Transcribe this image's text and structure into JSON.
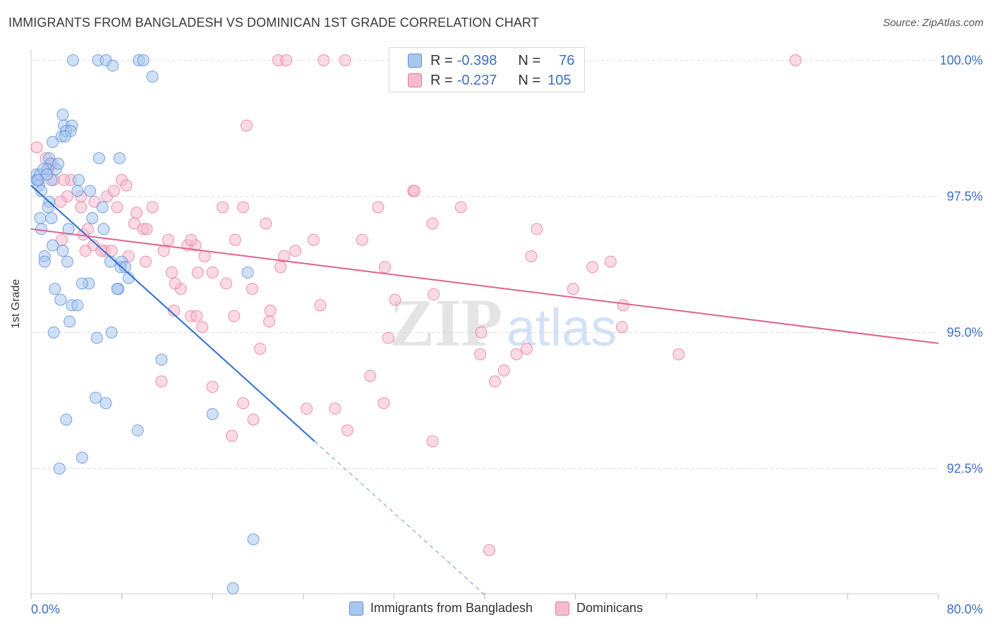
{
  "header": {
    "title": "IMMIGRANTS FROM BANGLADESH VS DOMINICAN 1ST GRADE CORRELATION CHART",
    "source": "Source: ZipAtlas.com"
  },
  "colors": {
    "blue": "#5b8fd9",
    "blue_fill": "#a9c6ee",
    "blue_line": "#2f6fd0",
    "pink": "#e8799b",
    "pink_fill": "#f5bccd",
    "pink_line": "#e0628e",
    "tick": "#3c6fc4",
    "grid": "#dddddd"
  },
  "legend_top": {
    "rows": [
      {
        "r_label": "R =",
        "r_value": "-0.398",
        "n_label": "N =",
        "n_value": "76"
      },
      {
        "r_label": "R =",
        "r_value": "-0.237",
        "n_label": "N =",
        "n_value": "105"
      }
    ]
  },
  "legend_bottom": {
    "items": [
      {
        "label": "Immigrants from Bangladesh"
      },
      {
        "label": "Dominicans"
      }
    ]
  },
  "watermark": {
    "zip": "ZIP",
    "atlas": "atlas"
  },
  "chart_data": {
    "type": "scatter",
    "title": "IMMIGRANTS FROM BANGLADESH VS DOMINICAN 1ST GRADE CORRELATION CHART",
    "xlabel": "",
    "ylabel": "1st Grade",
    "xlim": [
      0,
      80
    ],
    "ylim": [
      90.2,
      100.2
    ],
    "x_tick_labels": [
      "0.0%",
      "80.0%"
    ],
    "y_ticks": [
      92.5,
      95.0,
      97.5,
      100.0
    ],
    "y_tick_labels": [
      "92.5%",
      "95.0%",
      "97.5%",
      "100.0%"
    ],
    "grid": true,
    "series": [
      {
        "name": "Immigrants from Bangladesh",
        "R": -0.398,
        "N": 76,
        "trend": {
          "x0": 0,
          "y0": 97.7,
          "x1": 25,
          "y1": 93.0,
          "dash_to_x": 40
        },
        "points": [
          [
            3.7,
            100.0
          ],
          [
            5.9,
            100.0
          ],
          [
            6.6,
            100.0
          ],
          [
            7.2,
            99.9
          ],
          [
            9.5,
            100.0
          ],
          [
            9.9,
            100.0
          ],
          [
            10.7,
            99.7
          ],
          [
            2.8,
            99.0
          ],
          [
            2.9,
            98.8
          ],
          [
            3.6,
            98.8
          ],
          [
            2.7,
            98.6
          ],
          [
            3.1,
            98.7
          ],
          [
            3.5,
            98.7
          ],
          [
            1.9,
            98.5
          ],
          [
            1.6,
            98.2
          ],
          [
            1.7,
            98.1
          ],
          [
            1.4,
            98.0
          ],
          [
            6.0,
            98.2
          ],
          [
            7.8,
            98.2
          ],
          [
            0.5,
            97.9
          ],
          [
            0.5,
            97.8
          ],
          [
            0.7,
            97.7
          ],
          [
            0.8,
            97.9
          ],
          [
            1.8,
            97.8
          ],
          [
            4.2,
            97.8
          ],
          [
            1.6,
            97.4
          ],
          [
            4.1,
            97.6
          ],
          [
            1.5,
            97.3
          ],
          [
            6.3,
            97.3
          ],
          [
            0.8,
            97.1
          ],
          [
            5.4,
            97.1
          ],
          [
            0.9,
            96.9
          ],
          [
            1.8,
            97.1
          ],
          [
            3.3,
            96.9
          ],
          [
            6.4,
            96.9
          ],
          [
            1.9,
            96.6
          ],
          [
            1.2,
            96.4
          ],
          [
            2.8,
            96.5
          ],
          [
            1.2,
            96.3
          ],
          [
            3.2,
            96.3
          ],
          [
            8.0,
            96.3
          ],
          [
            7.9,
            96.2
          ],
          [
            8.3,
            96.2
          ],
          [
            19.1,
            96.1
          ],
          [
            5.1,
            95.9
          ],
          [
            4.5,
            95.9
          ],
          [
            7.7,
            95.8
          ],
          [
            7.6,
            95.8
          ],
          [
            2.1,
            95.8
          ],
          [
            2.6,
            95.6
          ],
          [
            3.6,
            95.5
          ],
          [
            4.1,
            95.5
          ],
          [
            3.4,
            95.2
          ],
          [
            2.0,
            95.0
          ],
          [
            7.1,
            95.0
          ],
          [
            5.8,
            94.9
          ],
          [
            11.5,
            94.5
          ],
          [
            5.7,
            93.8
          ],
          [
            6.6,
            93.7
          ],
          [
            3.1,
            93.4
          ],
          [
            16.0,
            93.5
          ],
          [
            9.4,
            93.2
          ],
          [
            4.5,
            92.7
          ],
          [
            2.5,
            92.5
          ],
          [
            19.6,
            91.2
          ],
          [
            17.8,
            90.3
          ],
          [
            0.6,
            97.8
          ],
          [
            1.1,
            98.0
          ],
          [
            2.2,
            98.0
          ],
          [
            0.9,
            97.6
          ],
          [
            1.4,
            97.9
          ],
          [
            2.4,
            98.1
          ],
          [
            3.0,
            98.6
          ],
          [
            5.2,
            97.6
          ],
          [
            7.0,
            96.3
          ],
          [
            8.6,
            96.0
          ]
        ]
      },
      {
        "name": "Dominicans",
        "R": -0.237,
        "N": 105,
        "trend": {
          "x0": 0,
          "y0": 96.9,
          "x1": 80,
          "y1": 94.8
        },
        "points": [
          [
            21.8,
            100.0
          ],
          [
            22.5,
            100.0
          ],
          [
            25.8,
            100.0
          ],
          [
            27.7,
            100.0
          ],
          [
            67.4,
            100.0
          ],
          [
            19.0,
            98.8
          ],
          [
            0.5,
            98.4
          ],
          [
            1.3,
            98.2
          ],
          [
            1.5,
            98.0
          ],
          [
            0.7,
            97.8
          ],
          [
            2.0,
            97.8
          ],
          [
            3.5,
            97.8
          ],
          [
            2.9,
            97.8
          ],
          [
            3.2,
            97.5
          ],
          [
            4.4,
            97.5
          ],
          [
            5.6,
            97.4
          ],
          [
            6.7,
            97.5
          ],
          [
            8.0,
            97.8
          ],
          [
            8.4,
            97.7
          ],
          [
            7.3,
            97.6
          ],
          [
            10.7,
            97.3
          ],
          [
            16.9,
            97.3
          ],
          [
            18.7,
            97.3
          ],
          [
            30.6,
            97.3
          ],
          [
            33.7,
            97.6
          ],
          [
            33.8,
            97.6
          ],
          [
            37.9,
            97.3
          ],
          [
            4.4,
            97.3
          ],
          [
            7.6,
            97.3
          ],
          [
            9.1,
            97.0
          ],
          [
            9.9,
            96.9
          ],
          [
            10.2,
            96.9
          ],
          [
            13.8,
            96.6
          ],
          [
            12.1,
            96.7
          ],
          [
            11.7,
            96.5
          ],
          [
            14.5,
            96.6
          ],
          [
            14.1,
            96.7
          ],
          [
            18.0,
            96.7
          ],
          [
            20.7,
            97.0
          ],
          [
            35.4,
            97.0
          ],
          [
            44.6,
            96.9
          ],
          [
            4.6,
            96.8
          ],
          [
            5.5,
            96.6
          ],
          [
            4.8,
            96.5
          ],
          [
            6.5,
            96.5
          ],
          [
            7.1,
            96.5
          ],
          [
            2.7,
            96.7
          ],
          [
            8.6,
            96.4
          ],
          [
            10.1,
            96.3
          ],
          [
            15.3,
            96.4
          ],
          [
            22.3,
            96.4
          ],
          [
            23.3,
            96.5
          ],
          [
            24.9,
            96.7
          ],
          [
            29.2,
            96.7
          ],
          [
            44.1,
            96.4
          ],
          [
            12.4,
            96.1
          ],
          [
            14.7,
            96.1
          ],
          [
            16.0,
            96.1
          ],
          [
            17.2,
            95.9
          ],
          [
            22.0,
            96.2
          ],
          [
            31.2,
            96.2
          ],
          [
            49.5,
            96.2
          ],
          [
            51.1,
            96.3
          ],
          [
            13.2,
            95.8
          ],
          [
            12.7,
            95.9
          ],
          [
            19.5,
            95.8
          ],
          [
            32.1,
            95.6
          ],
          [
            35.5,
            95.7
          ],
          [
            47.8,
            95.8
          ],
          [
            12.6,
            95.4
          ],
          [
            14.1,
            95.3
          ],
          [
            14.6,
            95.3
          ],
          [
            15.1,
            95.1
          ],
          [
            17.9,
            95.3
          ],
          [
            21.1,
            95.4
          ],
          [
            25.5,
            95.5
          ],
          [
            21.0,
            95.2
          ],
          [
            52.2,
            95.5
          ],
          [
            52.1,
            95.1
          ],
          [
            31.5,
            94.9
          ],
          [
            39.7,
            95.0
          ],
          [
            20.2,
            94.7
          ],
          [
            39.6,
            94.6
          ],
          [
            42.8,
            94.6
          ],
          [
            43.7,
            94.7
          ],
          [
            57.1,
            94.6
          ],
          [
            11.5,
            94.1
          ],
          [
            16.0,
            94.0
          ],
          [
            29.9,
            94.2
          ],
          [
            40.9,
            94.1
          ],
          [
            41.7,
            94.3
          ],
          [
            18.7,
            93.7
          ],
          [
            24.3,
            93.6
          ],
          [
            26.8,
            93.6
          ],
          [
            31.1,
            93.7
          ],
          [
            19.6,
            93.4
          ],
          [
            27.9,
            93.2
          ],
          [
            17.7,
            93.1
          ],
          [
            35.4,
            93.0
          ],
          [
            40.4,
            91.0
          ],
          [
            1.9,
            98.1
          ],
          [
            2.6,
            97.4
          ],
          [
            5.0,
            96.9
          ],
          [
            9.3,
            97.2
          ],
          [
            6.2,
            96.5
          ]
        ]
      }
    ]
  }
}
